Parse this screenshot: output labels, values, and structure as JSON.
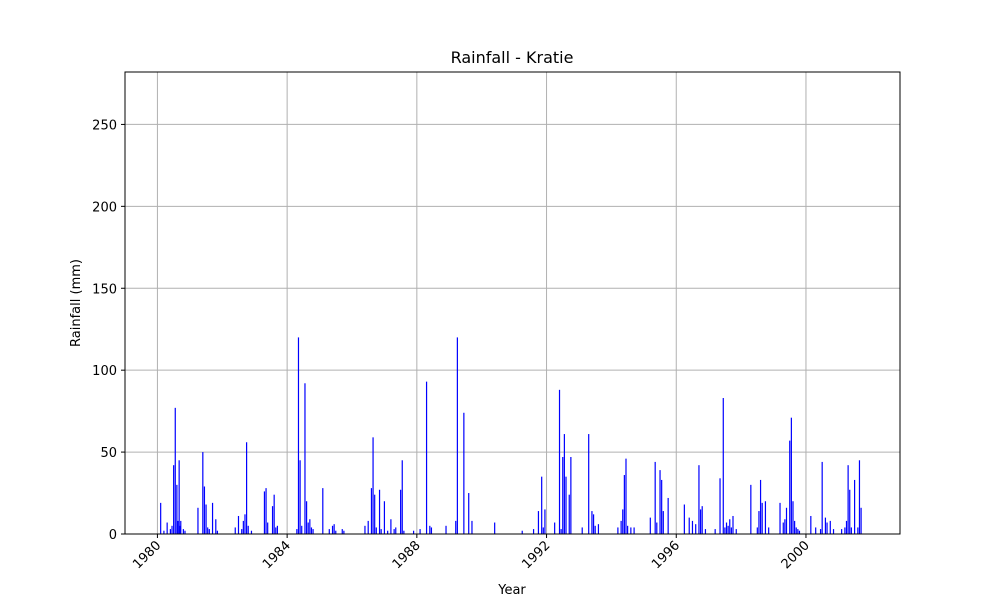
{
  "chart_data": {
    "type": "bar",
    "title": "Rainfall - Kratie",
    "xlabel": "Year",
    "ylabel": "Rainfall (mm)",
    "xlim": [
      1979.0,
      2002.9
    ],
    "ylim": [
      0,
      282
    ],
    "grid": true,
    "bar_color": "#0000ff",
    "x_ticks": [
      1980,
      1984,
      1988,
      1992,
      1996,
      2000
    ],
    "x_tick_labels": [
      "1980",
      "1984",
      "1988",
      "1992",
      "1996",
      "2000"
    ],
    "y_ticks": [
      0,
      50,
      100,
      150,
      200,
      250
    ],
    "y_tick_labels": [
      "0",
      "50",
      "100",
      "150",
      "200",
      "250"
    ],
    "series": [
      {
        "x": [
          1980.1,
          1980.2,
          1980.3,
          1980.4,
          1980.45,
          1980.5,
          1980.55,
          1980.6,
          1980.63,
          1980.67,
          1980.7,
          1980.72,
          1980.8,
          1980.85,
          1981.25,
          1981.4,
          1981.45,
          1981.5,
          1981.55,
          1981.6,
          1981.7,
          1981.8,
          1981.85,
          1982.4,
          1982.5,
          1982.6,
          1982.65,
          1982.7,
          1982.75,
          1982.8,
          1982.9,
          1983.3,
          1983.35,
          1983.4,
          1983.55,
          1983.6,
          1983.65,
          1983.7,
          1984.3,
          1984.35,
          1984.4,
          1984.45,
          1984.55,
          1984.6,
          1984.65,
          1984.7,
          1984.75,
          1984.8,
          1985.1,
          1985.3,
          1985.4,
          1985.45,
          1985.5,
          1985.7,
          1985.75,
          1986.4,
          1986.5,
          1986.6,
          1986.65,
          1986.7,
          1986.75,
          1986.85,
          1986.9,
          1987.0,
          1987.1,
          1987.2,
          1987.3,
          1987.35,
          1987.5,
          1987.55,
          1987.6,
          1987.9,
          1988.1,
          1988.3,
          1988.4,
          1988.45,
          1988.9,
          1989.2,
          1989.25,
          1989.45,
          1989.6,
          1989.7,
          1990.4,
          1991.25,
          1991.6,
          1991.75,
          1991.85,
          1991.9,
          1991.95,
          1992.25,
          1992.4,
          1992.45,
          1992.5,
          1992.55,
          1992.6,
          1992.7,
          1992.75,
          1993.1,
          1993.3,
          1993.4,
          1993.45,
          1993.5,
          1993.6,
          1994.2,
          1994.3,
          1994.35,
          1994.4,
          1994.45,
          1994.5,
          1994.6,
          1994.7,
          1995.2,
          1995.35,
          1995.4,
          1995.5,
          1995.55,
          1995.6,
          1995.75,
          1996.25,
          1996.4,
          1996.5,
          1996.6,
          1996.7,
          1996.75,
          1996.8,
          1996.9,
          1997.2,
          1997.35,
          1997.45,
          1997.5,
          1997.55,
          1997.6,
          1997.65,
          1997.7,
          1997.75,
          1997.85,
          1998.3,
          1998.5,
          1998.55,
          1998.6,
          1998.65,
          1998.75,
          1998.85,
          1999.2,
          1999.3,
          1999.35,
          1999.4,
          1999.5,
          1999.55,
          1999.6,
          1999.65,
          1999.7,
          1999.75,
          1999.8,
          2000.15,
          2000.3,
          2000.45,
          2000.5,
          2000.6,
          2000.65,
          2000.75,
          2000.85,
          2001.1,
          2001.2,
          2001.25,
          2001.3,
          2001.35,
          2001.4,
          2001.5,
          2001.6,
          2001.65,
          2001.7
        ],
        "values": [
          19,
          2,
          7,
          3,
          5,
          42,
          77,
          30,
          8,
          45,
          5,
          8,
          3,
          2,
          16,
          50,
          29,
          18,
          4,
          3,
          19,
          9,
          2,
          4,
          11,
          3,
          8,
          12,
          56,
          5,
          2,
          26,
          28,
          7,
          17,
          24,
          4,
          5,
          3,
          120,
          45,
          5,
          92,
          20,
          7,
          9,
          4,
          3,
          28,
          3,
          5,
          6,
          2,
          3,
          2,
          5,
          8,
          28,
          59,
          24,
          4,
          27,
          3,
          20,
          2,
          9,
          3,
          4,
          27,
          45,
          2,
          2,
          3,
          93,
          5,
          4,
          5,
          8,
          120,
          74,
          25,
          8,
          7,
          2,
          3,
          14,
          35,
          4,
          15,
          7,
          88,
          3,
          47,
          61,
          35,
          24,
          47,
          4,
          61,
          14,
          12,
          5,
          6,
          4,
          8,
          15,
          36,
          46,
          5,
          4,
          4,
          10,
          44,
          7,
          39,
          33,
          14,
          22,
          18,
          10,
          8,
          6,
          42,
          15,
          17,
          3,
          3,
          34,
          83,
          4,
          7,
          5,
          9,
          4,
          11,
          3,
          30,
          4,
          14,
          33,
          19,
          20,
          4,
          19,
          7,
          9,
          16,
          57,
          71,
          20,
          8,
          4,
          3,
          2,
          11,
          4,
          3,
          44,
          10,
          7,
          8,
          3,
          3,
          4,
          8,
          42,
          27,
          4,
          33,
          4,
          45,
          16
        ]
      }
    ]
  }
}
